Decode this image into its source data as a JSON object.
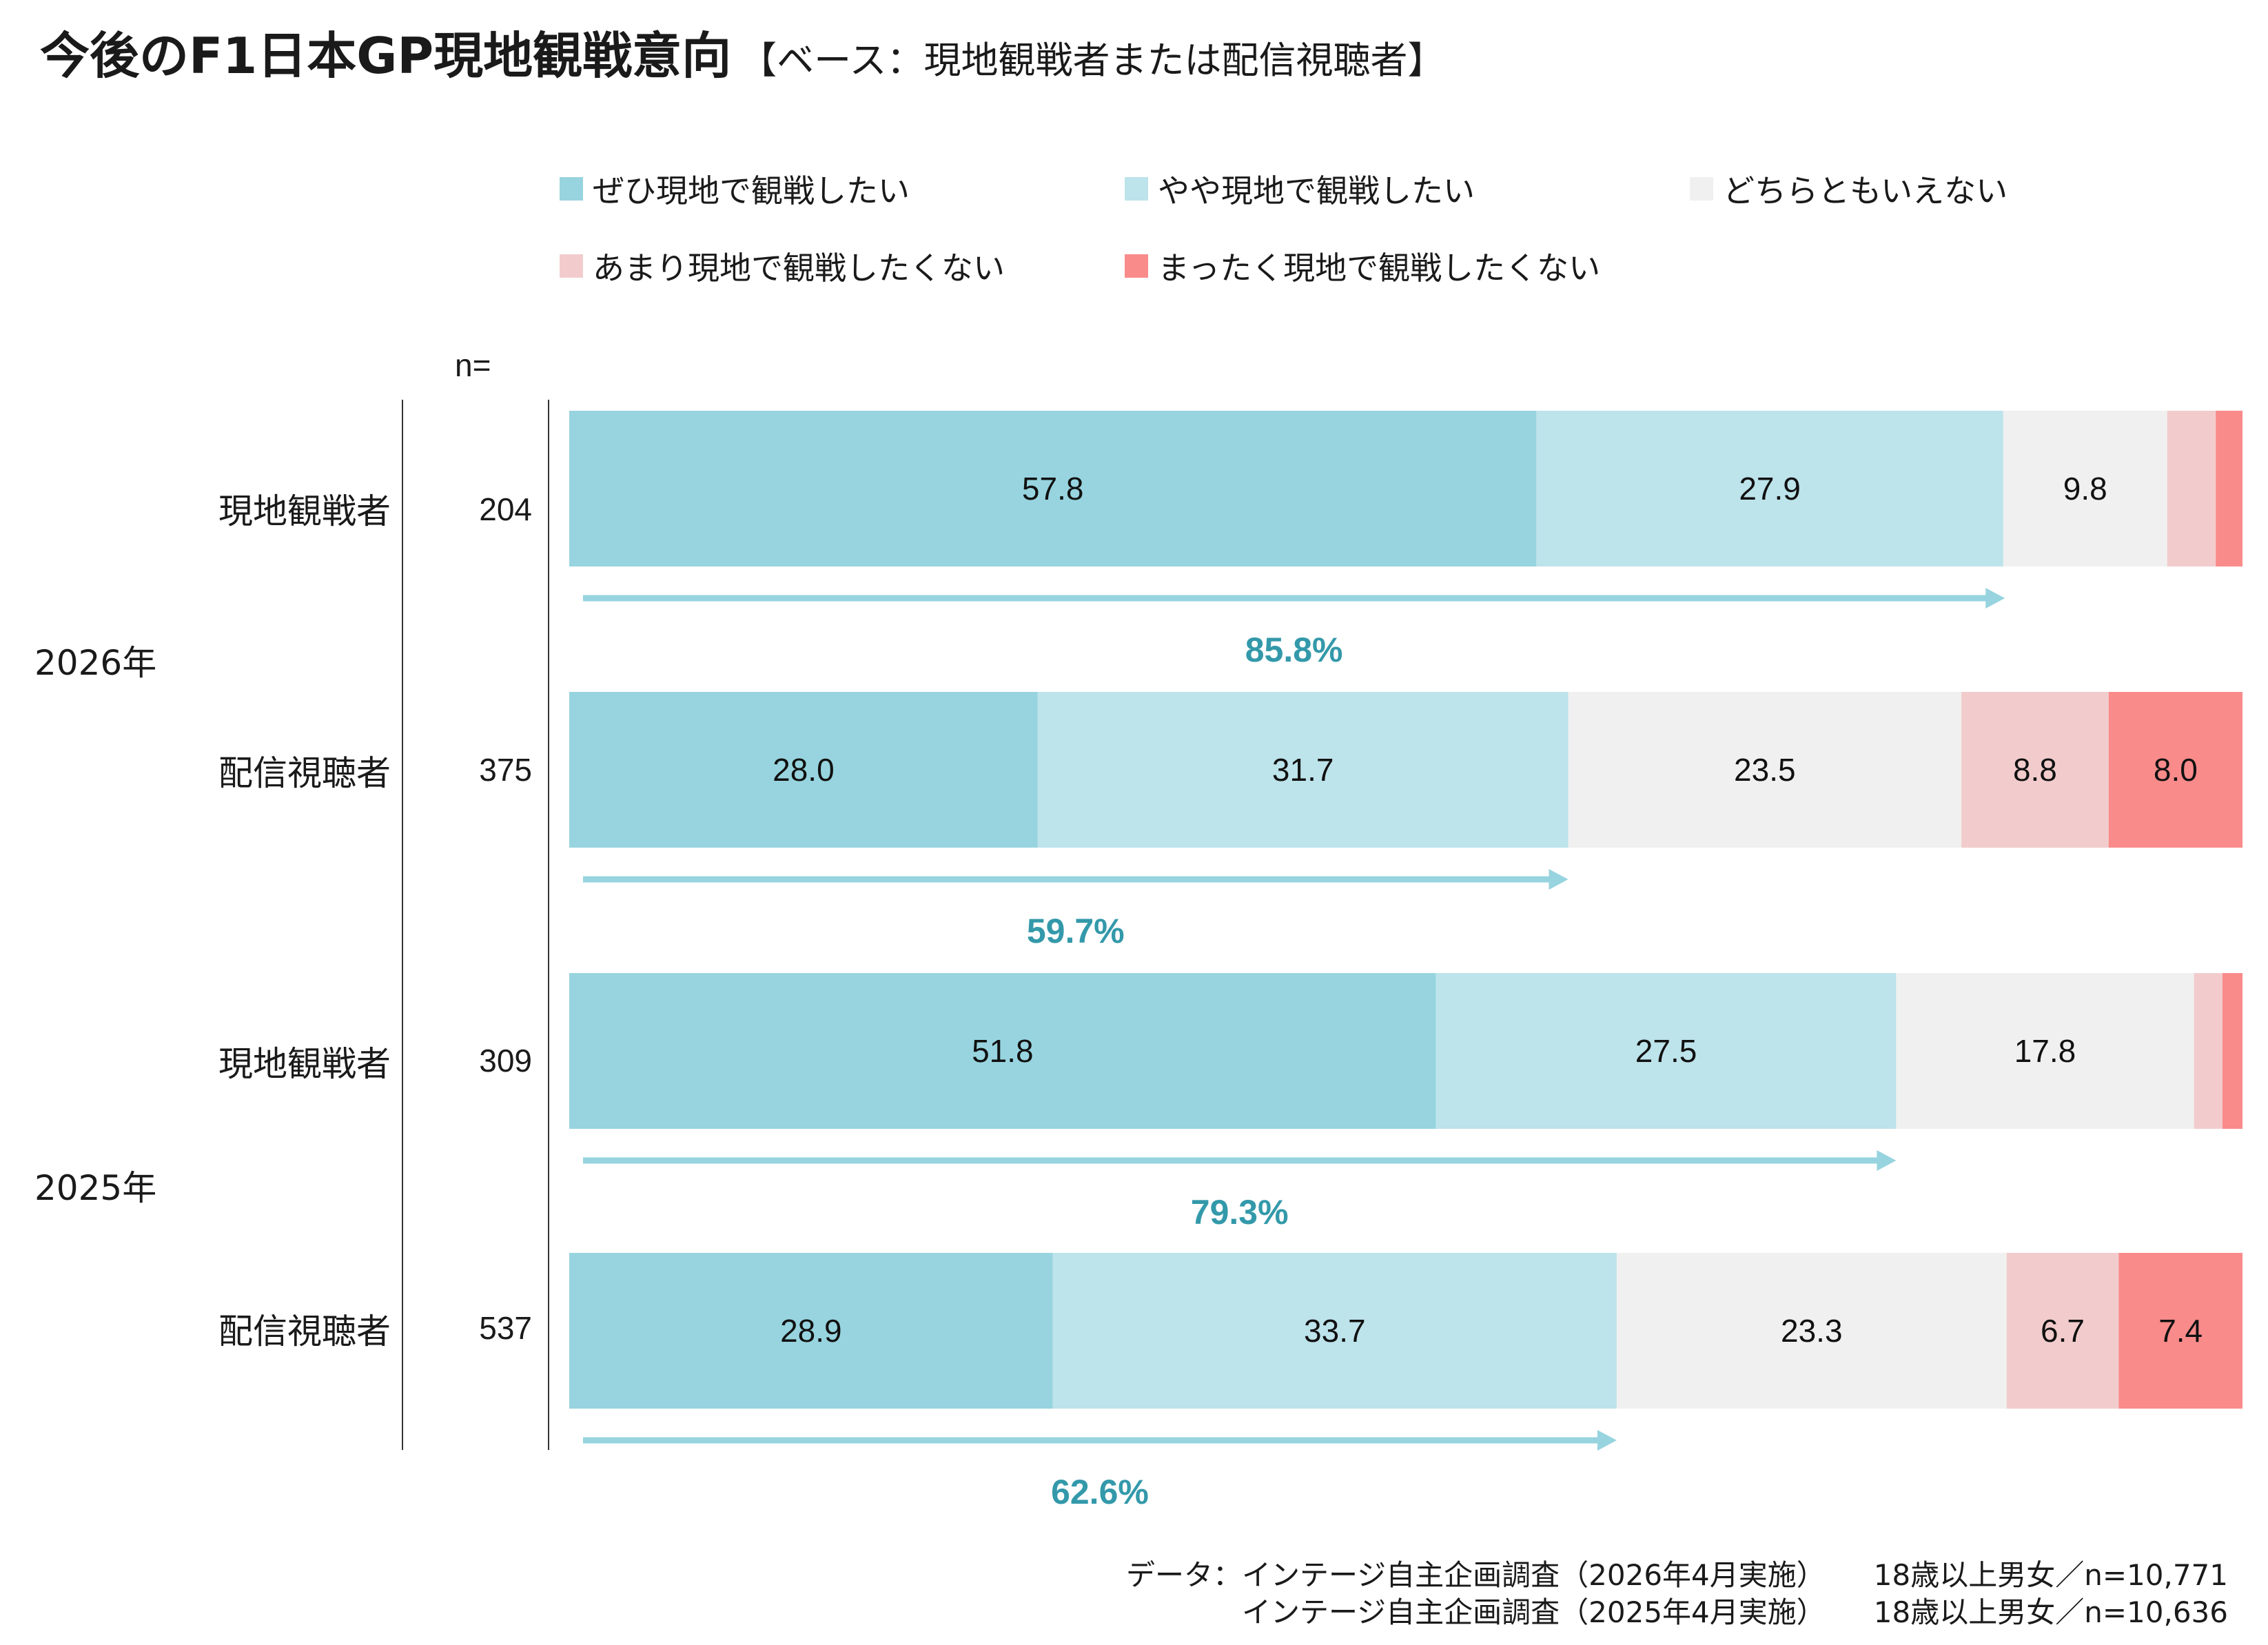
{
  "title": "今後のF1日本GP現地観戦意向",
  "subtitle": "【ベース：現地観戦者または配信視聴者】",
  "n_header": "n=",
  "colors": {
    "definitely_want": "#97D4DF",
    "somewhat_want": "#BDE3EB",
    "neutral": "#F0F0F0",
    "somewhat_not": "#F2CCCC",
    "not_at_all": "#F98B8B",
    "arrow": "#97D4DF",
    "arrow_label": "#3399AA"
  },
  "legend": [
    {
      "label": "ぜひ現地で観戦したい",
      "color": "#97D4DF"
    },
    {
      "label": "やや現地で観戦したい",
      "color": "#BDE3EB"
    },
    {
      "label": "どちらともいえない",
      "color": "#F0F0F0"
    },
    {
      "label": "あまり現地で観戦したくない",
      "color": "#F2CCCC"
    },
    {
      "label": "まったく現地で観戦したくない",
      "color": "#F98B8B"
    }
  ],
  "years": [
    "2026年",
    "2025年"
  ],
  "rows": [
    {
      "category": "現地観戦者",
      "n": "204"
    },
    {
      "category": "配信視聴者",
      "n": "375"
    },
    {
      "category": "現地観戦者",
      "n": "309"
    },
    {
      "category": "配信視聴者",
      "n": "537"
    }
  ],
  "footer": {
    "line1_survey": "データ：インテージ自主企画調査（2026年4月実施）",
    "line1_sample": "18歳以上男女／n=10,771",
    "line2_survey": "インテージ自主企画調査（2025年4月実施）",
    "line2_sample": "18歳以上男女／n=10,636"
  },
  "chart_data": {
    "type": "bar",
    "orientation": "horizontal",
    "stacked": true,
    "percent_scale": [
      0,
      100
    ],
    "categories": [
      "2026年 現地観戦者",
      "2026年 配信視聴者",
      "2025年 現地観戦者",
      "2025年 配信視聴者"
    ],
    "series": [
      {
        "name": "ぜひ現地で観戦したい",
        "values": [
          57.8,
          28.0,
          51.8,
          28.9
        ],
        "labels": [
          "57.8",
          "28.0",
          "51.8",
          "28.9"
        ]
      },
      {
        "name": "やや現地で観戦したい",
        "values": [
          27.9,
          31.7,
          27.5,
          33.7
        ],
        "labels": [
          "27.9",
          "31.7",
          "27.5",
          "33.7"
        ]
      },
      {
        "name": "どちらともいえない",
        "values": [
          9.8,
          23.5,
          17.8,
          23.3
        ],
        "labels": [
          "9.8",
          "23.5",
          "17.8",
          "23.3"
        ]
      },
      {
        "name": "あまり現地で観戦したくない",
        "values": [
          2.9,
          8.8,
          1.7,
          6.7
        ],
        "labels": [
          "",
          "8.8",
          "",
          "6.7"
        ]
      },
      {
        "name": "まったく現地で観戦したくない",
        "values": [
          1.6,
          8.0,
          1.2,
          7.4
        ],
        "labels": [
          "",
          "8.0",
          "",
          "7.4"
        ]
      }
    ],
    "want_totals": [
      85.8,
      59.7,
      79.3,
      62.6
    ],
    "want_total_labels": [
      "85.8%",
      "59.7%",
      "79.3%",
      "62.6%"
    ],
    "grid": false
  }
}
